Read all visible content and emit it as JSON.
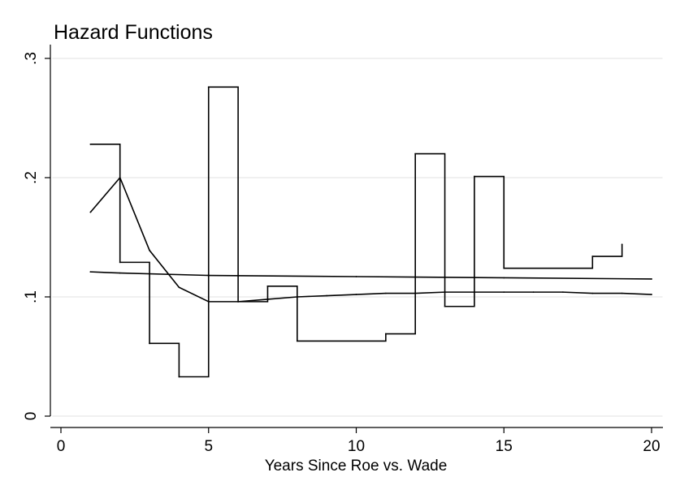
{
  "chart_data": {
    "type": "line",
    "title": "Hazard Functions",
    "xlabel": "Years Since Roe vs. Wade",
    "ylabel": "",
    "xlim": [
      0,
      20
    ],
    "ylim": [
      0,
      0.3
    ],
    "x_ticks": [
      0,
      5,
      10,
      15,
      20
    ],
    "x_tick_labels": [
      "0",
      "5",
      "10",
      "15",
      "20"
    ],
    "y_ticks": [
      0,
      0.1,
      0.2,
      0.3
    ],
    "y_tick_labels": [
      "0",
      ".1",
      ".2",
      ".3"
    ],
    "grid": true,
    "legend": "none",
    "line_color": "#000000",
    "grid_color": "#e6e6e6",
    "series": [
      {
        "style": "step",
        "x": [
          1,
          2,
          3,
          4,
          5,
          6,
          7,
          8,
          11,
          12,
          13,
          14,
          15,
          18,
          19
        ],
        "y": [
          0.228,
          0.129,
          0.061,
          0.033,
          0.276,
          0.096,
          0.109,
          0.063,
          0.069,
          0.22,
          0.092,
          0.201,
          0.124,
          0.134,
          0.144
        ]
      },
      {
        "style": "line",
        "x": [
          1,
          2,
          3,
          4,
          5,
          6,
          7,
          8,
          9,
          10,
          11,
          12,
          13,
          14,
          15,
          16,
          17,
          18,
          19,
          20
        ],
        "y": [
          0.171,
          0.2,
          0.139,
          0.108,
          0.096,
          0.096,
          0.098,
          0.1,
          0.101,
          0.102,
          0.103,
          0.103,
          0.104,
          0.104,
          0.104,
          0.104,
          0.104,
          0.103,
          0.103,
          0.102
        ]
      },
      {
        "style": "line",
        "x": [
          1,
          2,
          5,
          10,
          15,
          20
        ],
        "y": [
          0.121,
          0.12,
          0.118,
          0.117,
          0.116,
          0.115
        ]
      }
    ]
  }
}
